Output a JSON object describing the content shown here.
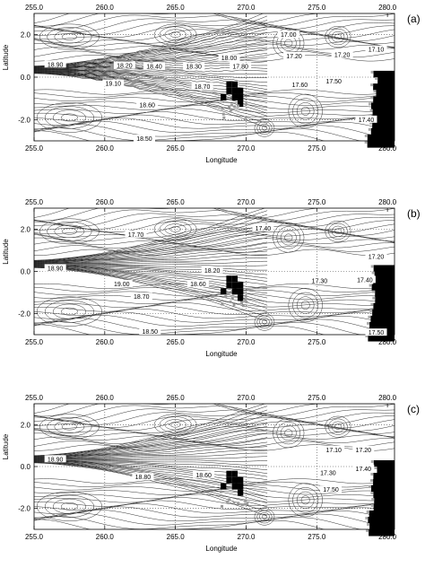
{
  "chart_data": [
    {
      "type": "contour",
      "panel_label": "(a)",
      "xlabel": "Longitude",
      "ylabel": "Latitude",
      "xticks_top": [
        "255.0",
        "260.0",
        "265.0",
        "270.0",
        "275.0",
        "280.0"
      ],
      "xticks_bottom": [
        "255.0",
        "260.0",
        "265.0",
        "270.0",
        "275.0",
        "280.0"
      ],
      "yticks": [
        "2.0",
        "0.0",
        "-2.0"
      ],
      "xlim": [
        255.0,
        280.5
      ],
      "ylim": [
        -3.0,
        3.0
      ],
      "grid": true,
      "contour_labels": [
        {
          "text": "17.00",
          "x": 273.0,
          "y": 2.0
        },
        {
          "text": "18.90",
          "x": 256.5,
          "y": 0.6
        },
        {
          "text": "18.20",
          "x": 261.4,
          "y": 0.55
        },
        {
          "text": "18.40",
          "x": 263.5,
          "y": 0.5
        },
        {
          "text": "18.30",
          "x": 266.3,
          "y": 0.5
        },
        {
          "text": "18.00",
          "x": 268.8,
          "y": 0.9
        },
        {
          "text": "17.80",
          "x": 269.6,
          "y": 0.5
        },
        {
          "text": "17.20",
          "x": 273.4,
          "y": 1.0
        },
        {
          "text": "17.20",
          "x": 276.8,
          "y": 1.05
        },
        {
          "text": "17.10",
          "x": 279.2,
          "y": 1.3
        },
        {
          "text": "19.10",
          "x": 260.6,
          "y": -0.3
        },
        {
          "text": "18.70",
          "x": 266.9,
          "y": -0.45
        },
        {
          "text": "17.60",
          "x": 273.8,
          "y": -0.35
        },
        {
          "text": "17.50",
          "x": 276.2,
          "y": -0.2
        },
        {
          "text": "18.60",
          "x": 263.0,
          "y": -1.3
        },
        {
          "text": "17.40",
          "x": 278.5,
          "y": -2.0
        },
        {
          "text": "18.50",
          "x": 262.8,
          "y": -2.9
        }
      ]
    },
    {
      "type": "contour",
      "panel_label": "(b)",
      "xlabel": "Longitude",
      "ylabel": "Latitude",
      "xticks_top": [
        "255.0",
        "260.0",
        "265.0",
        "270.0",
        "275.0",
        "280.0"
      ],
      "xticks_bottom": [
        "255.0",
        "260.0",
        "265.0",
        "270.0",
        "275.0",
        "280.0"
      ],
      "yticks": [
        "2.0",
        "0.0",
        "-2.0"
      ],
      "xlim": [
        255.0,
        280.5
      ],
      "ylim": [
        -3.0,
        3.0
      ],
      "grid": true,
      "contour_labels": [
        {
          "text": "17.70",
          "x": 262.2,
          "y": 1.75
        },
        {
          "text": "17.40",
          "x": 271.2,
          "y": 2.05
        },
        {
          "text": "17.20",
          "x": 279.2,
          "y": 0.7
        },
        {
          "text": "18.90",
          "x": 256.5,
          "y": 0.15
        },
        {
          "text": "18.20",
          "x": 267.6,
          "y": 0.05
        },
        {
          "text": "19.00",
          "x": 261.2,
          "y": -0.6
        },
        {
          "text": "18.70",
          "x": 262.6,
          "y": -1.2
        },
        {
          "text": "18.60",
          "x": 266.6,
          "y": -0.6
        },
        {
          "text": "17.30",
          "x": 275.2,
          "y": -0.45
        },
        {
          "text": "17.40",
          "x": 278.4,
          "y": -0.4
        },
        {
          "text": "18.50",
          "x": 263.2,
          "y": -2.85
        },
        {
          "text": "17.50",
          "x": 279.2,
          "y": -2.9
        }
      ]
    },
    {
      "type": "contour",
      "panel_label": "(c)",
      "xlabel": "Longitude",
      "ylabel": "Latitude",
      "xticks_top": [
        "255.0",
        "260.0",
        "265.0",
        "270.0",
        "275.0",
        "280.0"
      ],
      "xticks_bottom": [
        "255.0",
        "260.0",
        "265.0",
        "270.0",
        "275.0",
        "280.0"
      ],
      "yticks": [
        "2.0",
        "0.0",
        "-2.0"
      ],
      "xlim": [
        255.0,
        280.5
      ],
      "ylim": [
        -3.0,
        3.0
      ],
      "grid": true,
      "contour_labels": [
        {
          "text": "17.10",
          "x": 276.2,
          "y": 0.8
        },
        {
          "text": "17.20",
          "x": 278.3,
          "y": 0.8
        },
        {
          "text": "18.90",
          "x": 256.5,
          "y": 0.35
        },
        {
          "text": "17.30",
          "x": 275.8,
          "y": -0.3
        },
        {
          "text": "17.40",
          "x": 278.3,
          "y": -0.1
        },
        {
          "text": "18.80",
          "x": 262.7,
          "y": -0.5
        },
        {
          "text": "18.60",
          "x": 267.0,
          "y": -0.4
        },
        {
          "text": "17.50",
          "x": 276.0,
          "y": -1.1
        }
      ]
    }
  ]
}
